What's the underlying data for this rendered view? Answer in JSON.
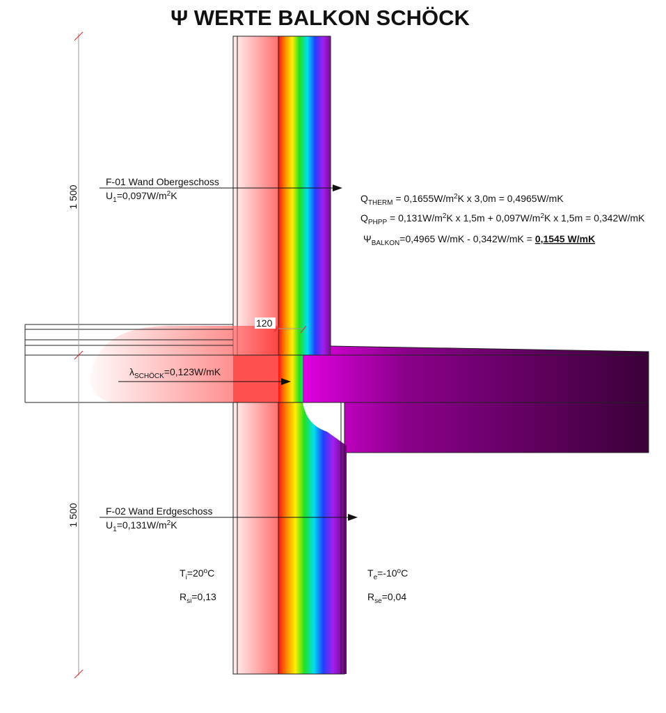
{
  "title": "Ψ WERTE BALKON SCHÖCK",
  "dimensions": [
    "1 500",
    "1 500"
  ],
  "wall_upper": {
    "name": "F-01 Wand Obergeschoss",
    "u_value": [
      {
        "text": "U"
      },
      {
        "text": "1",
        "shift": "sub"
      },
      {
        "text": "=0,097W/m"
      },
      {
        "text": "2",
        "shift": "sup"
      },
      {
        "text": "K"
      }
    ]
  },
  "wall_lower": {
    "name": "F-02 Wand Erdgeschoss",
    "u_value": [
      {
        "text": "U"
      },
      {
        "text": "1",
        "shift": "sub"
      },
      {
        "text": "=0,131W/m"
      },
      {
        "text": "2",
        "shift": "sup"
      },
      {
        "text": "K"
      }
    ]
  },
  "insulation_offset": "120",
  "lambda": [
    {
      "text": "λ"
    },
    {
      "text": "SCHÖCK",
      "shift": "sub"
    },
    {
      "text": "=0,123W/mK"
    }
  ],
  "formulas": [
    [
      {
        "text": "Q"
      },
      {
        "text": "THERM",
        "shift": "sub"
      },
      {
        "text": " = 0,1655W/m"
      },
      {
        "text": "2",
        "shift": "sup"
      },
      {
        "text": "K x 3,0m = 0,4965W/mK"
      }
    ],
    [
      {
        "text": "Q"
      },
      {
        "text": "PHPP",
        "shift": "sub"
      },
      {
        "text": " = 0,131W/m"
      },
      {
        "text": "2",
        "shift": "sup"
      },
      {
        "text": "K x 1,5m + 0,097W/m"
      },
      {
        "text": "2",
        "shift": "sup"
      },
      {
        "text": "K x 1,5m = 0,342W/mK"
      }
    ],
    [
      {
        "text": "Ψ"
      },
      {
        "text": "BALKON",
        "shift": "sub"
      },
      {
        "text": "=0,4965 W/mK - 0,342W/mK = "
      },
      {
        "text": "0,1545 W/mK",
        "style": "bold-underline"
      }
    ]
  ],
  "inside": {
    "temperature": [
      {
        "text": "T"
      },
      {
        "text": "i",
        "shift": "sub"
      },
      {
        "text": "=20"
      },
      {
        "text": "o",
        "shift": "sup"
      },
      {
        "text": "C"
      }
    ],
    "resistance": [
      {
        "text": "R"
      },
      {
        "text": "si",
        "shift": "sub"
      },
      {
        "text": "=0,13"
      }
    ]
  },
  "outside": {
    "temperature": [
      {
        "text": "T"
      },
      {
        "text": "e",
        "shift": "sub"
      },
      {
        "text": "=-10"
      },
      {
        "text": "o",
        "shift": "sup"
      },
      {
        "text": "C"
      }
    ],
    "resistance": [
      {
        "text": "R"
      },
      {
        "text": "se",
        "shift": "sub"
      },
      {
        "text": "=0,04"
      }
    ]
  }
}
